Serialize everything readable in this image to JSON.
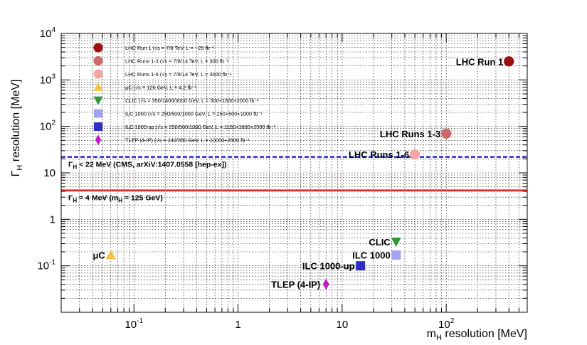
{
  "chart_data": {
    "type": "scatter",
    "xlabel": "m",
    "xlabel_sub": "H",
    "xlabel_rest": " resolution [MeV]",
    "ylabel": "Γ",
    "ylabel_sub": "H",
    "ylabel_rest": " resolution [MeV]",
    "x_scale": "log",
    "y_scale": "log",
    "xlim": [
      0.02,
      600
    ],
    "ylim": [
      0.01,
      10000
    ],
    "grid": true,
    "legend_position": "top-left",
    "x_ticks": [
      {
        "v": 0.1,
        "base": "10",
        "exp": "-1"
      },
      {
        "v": 1,
        "base": "1",
        "exp": ""
      },
      {
        "v": 10,
        "base": "10",
        "exp": ""
      },
      {
        "v": 100,
        "base": "10",
        "exp": "2"
      }
    ],
    "y_ticks": [
      {
        "v": 0.1,
        "base": "10",
        "exp": "-1"
      },
      {
        "v": 1,
        "base": "1",
        "exp": ""
      },
      {
        "v": 10,
        "base": "10",
        "exp": ""
      },
      {
        "v": 100,
        "base": "10",
        "exp": "2"
      },
      {
        "v": 1000,
        "base": "10",
        "exp": "3"
      },
      {
        "v": 10000,
        "base": "10",
        "exp": "4"
      }
    ],
    "hlines": [
      {
        "y": 22,
        "color": "#2a2ad6",
        "style": "dashed",
        "label": "Γ",
        "label_sub": "H",
        "label_rest": " < 22 MeV (CMS, arXiV:1407.0558 [hep-ex])"
      },
      {
        "y": 4.2,
        "color": "#e8231f",
        "style": "solid",
        "label": "Γ",
        "label_sub": "H",
        "label_rest": " = 4 MeV (m",
        "label_sub2": "H",
        "label_rest2": " = 125 GeV)"
      }
    ],
    "series": [
      {
        "name": "LHC Run 1",
        "legend": "LHC Run 1 (√s = 7/8 TeV, L = ~25 fb⁻¹",
        "marker": "circle",
        "color": "#9b0f0f",
        "x": 400,
        "y": 2500
      },
      {
        "name": "LHC Runs 1-3",
        "legend": "LHC Runs 1-3 (√s = 7/8/14 TeV, L = 300 fb⁻¹",
        "marker": "circle",
        "color": "#cc6a6a",
        "x": 100,
        "y": 70
      },
      {
        "name": "LHC Runs 1-6",
        "legend": "LHC Runs 1-6 (√s = 7/8/14 TeV, L = 3000 fb⁻¹",
        "marker": "circle",
        "color": "#f2a6a6",
        "x": 50,
        "y": 25
      },
      {
        "name": "μC",
        "legend": "μC (√s = 126 GeV, L = 4.2 fb⁻¹",
        "marker": "triangle-up",
        "color": "#f5c242",
        "x": 0.06,
        "y": 0.17
      },
      {
        "name": "CLIC",
        "legend": "CLIC (√s = 350/1400/3000 GeV, L = 500+1500+2000 fb⁻¹",
        "marker": "triangle-down",
        "color": "#2f9a3a",
        "x": 33,
        "y": 0.33
      },
      {
        "name": "ILC 1000",
        "legend": "ILC 1000 (√s = 250/500/1000 GeV, L = 250+500+1000 fb⁻¹",
        "marker": "square",
        "color": "#a2a2f2",
        "x": 33,
        "y": 0.17
      },
      {
        "name": "ILC 1000-up",
        "legend": "ILC 1000-up (√s = 250/500/1000 GeV, L = 1150+1600+2500 fb⁻¹",
        "marker": "square",
        "color": "#2e2ec2",
        "x": 15,
        "y": 0.1
      },
      {
        "name": "TLEP (4-IP)",
        "legend": "TLEP (4-IP) (√s = 240/350 GeV, L = 10000+2600 fb⁻¹",
        "marker": "diamond",
        "color": "#c41ac4",
        "x": 7,
        "y": 0.04
      }
    ]
  }
}
